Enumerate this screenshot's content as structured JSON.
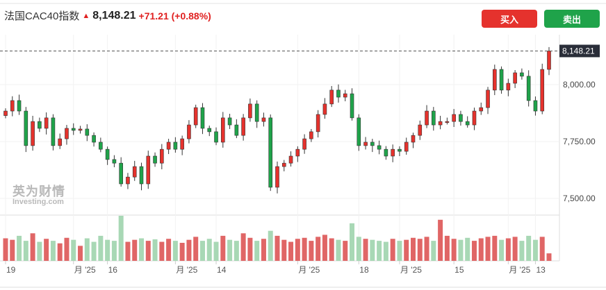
{
  "header": {
    "title": "法国CAC40指数",
    "price": "8,148.21",
    "change": "+71.21 (+0.88%)"
  },
  "buttons": {
    "buy": "买入",
    "sell": "卖出"
  },
  "watermark": {
    "cn": "英为财情",
    "en": "Investing.com"
  },
  "colors": {
    "up": "#e5322d",
    "down": "#1fa34a",
    "vol_up": "#e06666",
    "vol_down": "#a8d8b5"
  },
  "chart_data": {
    "type": "candlestick",
    "last_price_label": "8,148.21",
    "ylim": [
      7420,
      8200
    ],
    "yticks": [
      {
        "v": 8000,
        "label": "8,000.00"
      },
      {
        "v": 7750,
        "label": "7,750.00"
      },
      {
        "v": 7500,
        "label": "7,500.00"
      }
    ],
    "xticks": [
      {
        "i": 0,
        "label": "19"
      },
      {
        "i": 10,
        "label": "月 '25"
      },
      {
        "i": 15,
        "label": "16"
      },
      {
        "i": 25,
        "label": "月 '25"
      },
      {
        "i": 31,
        "label": "14"
      },
      {
        "i": 43,
        "label": "月 '25"
      },
      {
        "i": 52,
        "label": "18"
      },
      {
        "i": 58,
        "label": "月 '25"
      },
      {
        "i": 66,
        "label": "15"
      },
      {
        "i": 74,
        "label": "月 '25"
      },
      {
        "i": 78,
        "label": "13"
      }
    ],
    "close": [
      7884,
      7930,
      7884,
      7732,
      7838,
      7808,
      7854,
      7732,
      7762,
      7808,
      7799,
      7805,
      7777,
      7747,
      7716,
      7671,
      7655,
      7564,
      7594,
      7640,
      7564,
      7686,
      7655,
      7716,
      7747,
      7716,
      7762,
      7823,
      7899,
      7808,
      7793,
      7747,
      7854,
      7823,
      7777,
      7854,
      7915,
      7838,
      7854,
      7549,
      7640,
      7655,
      7686,
      7716,
      7762,
      7793,
      7869,
      7915,
      7976,
      7945,
      7960,
      7854,
      7732,
      7747,
      7732,
      7716,
      7686,
      7716,
      7707,
      7747,
      7777,
      7823,
      7884,
      7823,
      7838,
      7838,
      7869,
      7838,
      7823,
      7884,
      7899,
      7976,
      8067,
      7976,
      8006,
      8052,
      8037,
      7930,
      7884,
      8067,
      8148
    ],
    "volume": [
      0.45,
      0.42,
      0.5,
      0.4,
      0.55,
      0.38,
      0.44,
      0.4,
      0.35,
      0.46,
      0.42,
      0.3,
      0.45,
      0.38,
      0.5,
      0.42,
      0.4,
      0.9,
      0.38,
      0.42,
      0.45,
      0.4,
      0.43,
      0.38,
      0.44,
      0.4,
      0.36,
      0.42,
      0.48,
      0.4,
      0.44,
      0.38,
      0.5,
      0.42,
      0.4,
      0.55,
      0.46,
      0.4,
      0.44,
      0.6,
      0.5,
      0.42,
      0.38,
      0.44,
      0.46,
      0.4,
      0.48,
      0.52,
      0.45,
      0.42,
      0.4,
      0.75,
      0.48,
      0.44,
      0.42,
      0.4,
      0.38,
      0.44,
      0.4,
      0.42,
      0.46,
      0.44,
      0.48,
      0.4,
      0.82,
      0.5,
      0.44,
      0.42,
      0.46,
      0.4,
      0.45,
      0.48,
      0.5,
      0.42,
      0.45,
      0.48,
      0.4,
      0.5,
      0.42,
      0.48,
      0.15
    ]
  }
}
